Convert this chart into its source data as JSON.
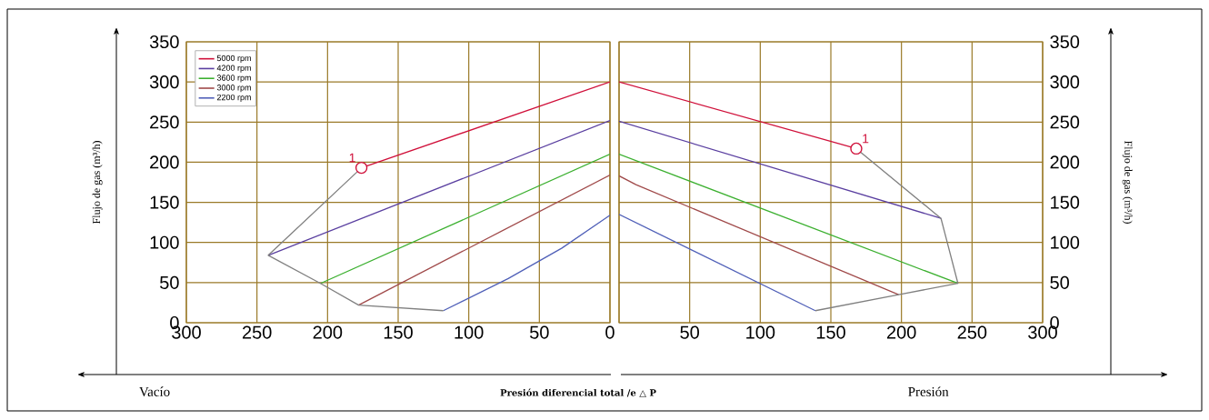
{
  "chart_data": [
    {
      "type": "line",
      "xlabel": "Presión diferencial total /e △ P",
      "ylabel": "Flujo de gas (m³/h)",
      "xlim": [
        300,
        0
      ],
      "ylim": [
        0,
        350
      ],
      "xticks": [
        300,
        250,
        200,
        150,
        100,
        50,
        0
      ],
      "yticks": [
        0,
        50,
        100,
        150,
        200,
        250,
        300,
        350
      ],
      "grid": true,
      "legend": "top left",
      "annotations": [
        {
          "text": "1",
          "x": 176,
          "y": 193
        },
        "Vacío"
      ],
      "series": [
        {
          "name": "5000 rpm",
          "color": "#d0103a",
          "x": [
            176,
            0
          ],
          "values": [
            193,
            300
          ]
        },
        {
          "name": "4200 rpm",
          "color": "#5a3fa0",
          "x": [
            242,
            0
          ],
          "values": [
            84,
            252
          ]
        },
        {
          "name": "3600 rpm",
          "color": "#3cb030",
          "x": [
            205,
            0
          ],
          "values": [
            49,
            210
          ]
        },
        {
          "name": "3000 rpm",
          "color": "#a04a4a",
          "x": [
            178,
            0
          ],
          "values": [
            22,
            184
          ]
        },
        {
          "name": "2200 rpm",
          "color": "#5060b8",
          "x": [
            118,
            72,
            34,
            0
          ],
          "values": [
            15,
            55,
            93,
            134
          ]
        },
        {
          "color": "#808080",
          "x": [
            176,
            242,
            205,
            178,
            118
          ],
          "values": [
            193,
            84,
            49,
            22,
            15
          ]
        },
        {
          "type": "scatter",
          "marker": "circle",
          "color": "#d0103a",
          "x": [
            176
          ],
          "values": [
            193
          ]
        }
      ]
    },
    {
      "type": "line",
      "ylabel": "Flujo de gas (m³/h)",
      "xlim": [
        0,
        300
      ],
      "ylim": [
        0,
        350
      ],
      "xticks": [
        {
          "value": 0,
          "label": null
        },
        50,
        100,
        150,
        200,
        250,
        300
      ],
      "yticks": [
        0,
        50,
        100,
        150,
        200,
        250,
        300,
        350
      ],
      "grid": true,
      "annotations": [
        {
          "text": "1",
          "x": 168,
          "y": 217
        },
        "Presión"
      ],
      "series": [
        {
          "color": "#d0103a",
          "x": [
            0,
            168
          ],
          "values": [
            300,
            217
          ]
        },
        {
          "color": "#5a3fa0",
          "x": [
            0,
            228
          ],
          "values": [
            251,
            130
          ]
        },
        {
          "color": "#3cb030",
          "x": [
            0,
            240
          ],
          "values": [
            210,
            49
          ]
        },
        {
          "color": "#a04a4a",
          "x": [
            0,
            12,
            198
          ],
          "values": [
            183,
            172,
            35
          ]
        },
        {
          "color": "#5060b8",
          "x": [
            0,
            139
          ],
          "values": [
            135,
            15
          ]
        },
        {
          "color": "#808080",
          "x": [
            168,
            228,
            240,
            198,
            139
          ],
          "values": [
            217,
            130,
            49,
            35,
            15
          ]
        },
        {
          "type": "scatter",
          "marker": "circle",
          "color": "#d0103a",
          "x": [
            168
          ],
          "values": [
            217
          ]
        }
      ]
    }
  ]
}
